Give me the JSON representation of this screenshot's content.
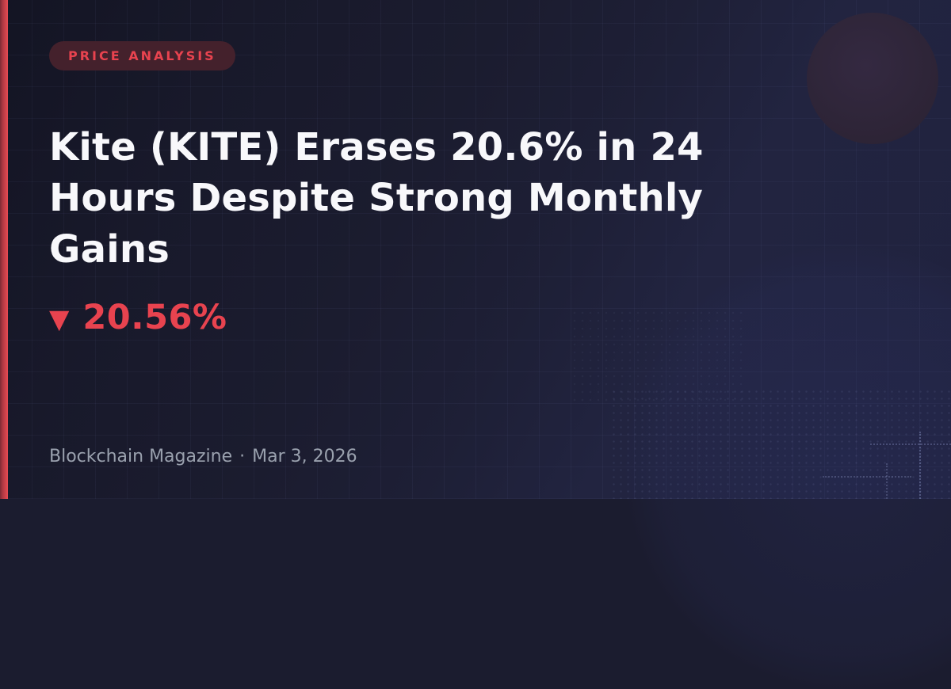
{
  "badge": {
    "label": "PRICE ANALYSIS"
  },
  "headline": {
    "text": "Kite (KITE) Erases 20.6% in 24 Hours Despite Strong Monthly Gains"
  },
  "price_change": {
    "icon": "▼",
    "value": "20.56%"
  },
  "footer": {
    "publication": "Blockchain Magazine",
    "separator": "·",
    "date": "Mar 3, 2026"
  },
  "colors": {
    "background": "#1b1c2f",
    "accent_red": "#e8434f",
    "left_bar_red": "#e84b53",
    "badge_background": "#44212c",
    "headline_text": "#f8f8fb",
    "muted_text": "#9aa1ae",
    "corner_circle": "#2d2436"
  }
}
